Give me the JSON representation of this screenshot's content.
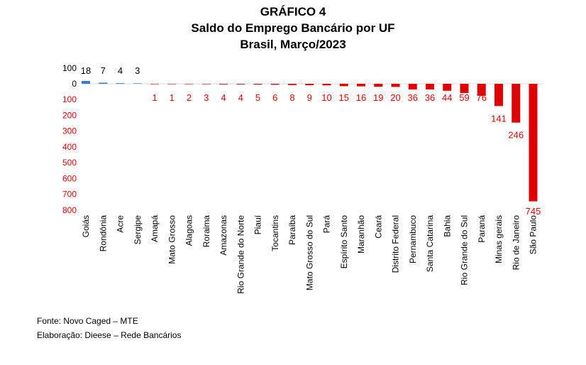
{
  "title_line1": "GRÁFICO 4",
  "title_line2": "Saldo do Emprego Bancário por UF",
  "title_line3": "Brasil, Março/2023",
  "source": "Fonte: Novo Caged – MTE",
  "credit": "Elaboração: Dieese – Rede Bancários",
  "colors": {
    "positive": "#3b78c5",
    "negative": "#e00000",
    "positive_label": "#000000",
    "negative_label": "#e00000"
  },
  "chart_data": {
    "type": "bar",
    "categories": [
      "Goiás",
      "Rondônia",
      "Acre",
      "Sergipe",
      "Amapá",
      "Mato Grosso",
      "Alagoas",
      "Roraima",
      "Amazonas",
      "Rio Grande do Norte",
      "Piauí",
      "Tocantins",
      "Paraíba",
      "Mato Grosso do Sul",
      "Pará",
      "Espírito Santo",
      "Maranhão",
      "Ceará",
      "Distrito Federal",
      "Pernambuco",
      "Santa Catarina",
      "Bahia",
      "Rio Grande do Sul",
      "Paraná",
      "Minas gerais",
      "Rio de Janeiro",
      "São Paulo"
    ],
    "values": [
      18,
      7,
      4,
      3,
      -1,
      -1,
      -2,
      -3,
      -4,
      -4,
      -5,
      -6,
      -8,
      -9,
      -10,
      -15,
      -16,
      -19,
      -20,
      -36,
      -36,
      -44,
      -59,
      -76,
      -141,
      -246,
      -745
    ],
    "data_labels": [
      "18",
      "7",
      "4",
      "3",
      "1",
      "1",
      "2",
      "3",
      "4",
      "4",
      "5",
      "6",
      "8",
      "9",
      "10",
      "15",
      "16",
      "19",
      "20",
      "36",
      "36",
      "44",
      "59",
      "76",
      "141",
      "246",
      "745"
    ],
    "yticks": [
      100,
      0,
      -100,
      -200,
      -300,
      -400,
      -500,
      -600,
      -700,
      -800
    ],
    "ytick_labels": [
      "100",
      "0",
      "100",
      "200",
      "300",
      "400",
      "500",
      "600",
      "700",
      "800"
    ],
    "ylim": [
      -800,
      100
    ],
    "grid": false,
    "legend": "none"
  }
}
